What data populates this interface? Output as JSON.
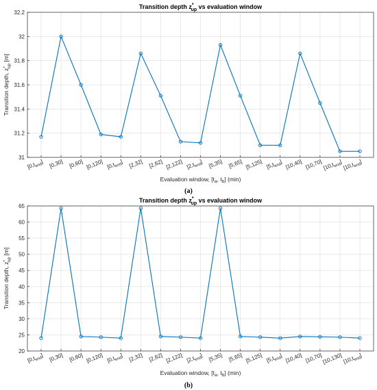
{
  "chart_data": [
    {
      "type": "line",
      "title": "Transition depth z*up vs evaluation window",
      "title_parts": {
        "pre": "Transition depth z",
        "sup": "*",
        "sub": "up",
        "post": " vs evaluation window"
      },
      "ylabel": "Transition depth, z*up [m]",
      "ylabel_parts": {
        "pre": "Transition depth, z",
        "sup": "*",
        "sub": "up",
        "post": " [m]"
      },
      "xlabel": "Evaluation window, [ta, tb] (min)",
      "xlabel_parts": {
        "pre": "Evaluation window, [t",
        "sub1": "a",
        "mid": ", t",
        "sub2": "b",
        "post": "] (min)"
      },
      "ylim": [
        31,
        32.2
      ],
      "yticks": [
        31,
        31.2,
        31.4,
        31.6,
        31.8,
        32,
        32.2
      ],
      "ytick_labels": [
        "31",
        "31.2",
        "31.4",
        "31.6",
        "31.8",
        "32",
        "32.2"
      ],
      "grid": true,
      "color": "#0072BD",
      "categories": [
        "[0,tend]",
        "[0,30]",
        "[0,60]",
        "[0,120]",
        "[0,tend]",
        "[2,32]",
        "[2,62]",
        "[2,122]",
        "[2,tend]",
        "[5,35]",
        "[5,65]",
        "[5,125]",
        "[5,tend]",
        "[10,40]",
        "[10,70]",
        "[10,tend]",
        "[10,tend]"
      ],
      "tick_labels": [
        {
          "pre": "[0,t",
          "sub": "end",
          "post": "]"
        },
        {
          "pre": "[0,30]"
        },
        {
          "pre": "[0,60]"
        },
        {
          "pre": "[0,120]"
        },
        {
          "pre": "[0,t",
          "sub": "end",
          "post": "]"
        },
        {
          "pre": "[2,32]"
        },
        {
          "pre": "[2,62]"
        },
        {
          "pre": "[2,122]"
        },
        {
          "pre": "[2,t",
          "sub": "end",
          "post": "]"
        },
        {
          "pre": "[5,35]"
        },
        {
          "pre": "[5,65]"
        },
        {
          "pre": "[5,125]"
        },
        {
          "pre": "[5,t",
          "sub": "end",
          "post": "]"
        },
        {
          "pre": "[10,40]"
        },
        {
          "pre": "[10,70]"
        },
        {
          "pre": "[10,t",
          "sub": "end",
          "post": "]"
        },
        {
          "pre": "[10,t",
          "sub": "end",
          "post": "]"
        }
      ],
      "values": [
        31.17,
        32.0,
        31.6,
        31.19,
        31.17,
        31.86,
        31.51,
        31.13,
        31.12,
        31.93,
        31.51,
        31.1,
        31.1,
        31.86,
        31.45,
        31.05,
        31.05
      ],
      "panel_label": "(a)"
    },
    {
      "type": "line",
      "title": "Transition depth z*up vs evaluation window",
      "title_parts": {
        "pre": "Transition depth z",
        "sup": "*",
        "sub": "up",
        "post": " vs evaluation window"
      },
      "ylabel": "Transition depth, z*up [m]",
      "ylabel_parts": {
        "pre": "Transition depth, z",
        "sup": "*",
        "sub": "up",
        "post": " [m]"
      },
      "xlabel": "Evaluation window, [ta, tb] (min)",
      "xlabel_parts": {
        "pre": "Evaluation window, [t",
        "sub1": "a",
        "mid": ", t",
        "sub2": "b",
        "post": "] (min)"
      },
      "ylim": [
        20,
        65
      ],
      "yticks": [
        20,
        25,
        30,
        35,
        40,
        45,
        50,
        55,
        60,
        65
      ],
      "ytick_labels": [
        "20",
        "25",
        "30",
        "35",
        "40",
        "45",
        "50",
        "55",
        "60",
        "65"
      ],
      "grid": true,
      "color": "#0072BD",
      "categories": [
        "[0,tend]",
        "[0,30]",
        "[0,60]",
        "[0,120]",
        "[0,tend]",
        "[2,32]",
        "[2,62]",
        "[2,122]",
        "[2,tend]",
        "[5,35]",
        "[5,65]",
        "[5,125]",
        "[5,tend]",
        "[10,40]",
        "[10,70]",
        "[10,130]",
        "[10,tend]"
      ],
      "tick_labels": [
        {
          "pre": "[0,t",
          "sub": "end",
          "post": "]"
        },
        {
          "pre": "[0,30]"
        },
        {
          "pre": "[0,60]"
        },
        {
          "pre": "[0,120]"
        },
        {
          "pre": "[0,t",
          "sub": "end",
          "post": "]"
        },
        {
          "pre": "[2,32]"
        },
        {
          "pre": "[2,62]"
        },
        {
          "pre": "[2,122]"
        },
        {
          "pre": "[2,t",
          "sub": "end",
          "post": "]"
        },
        {
          "pre": "[5,35]"
        },
        {
          "pre": "[5,65]"
        },
        {
          "pre": "[5,125]"
        },
        {
          "pre": "[5,t",
          "sub": "end",
          "post": "]"
        },
        {
          "pre": "[10,40]"
        },
        {
          "pre": "[10,70]"
        },
        {
          "pre": "[10,130]"
        },
        {
          "pre": "[10,t",
          "sub": "end",
          "post": "]"
        }
      ],
      "values": [
        24.0,
        64.3,
        24.5,
        24.3,
        24.0,
        64.3,
        24.5,
        24.3,
        24.0,
        64.3,
        24.5,
        24.3,
        24.0,
        24.5,
        24.4,
        24.3,
        24.0
      ],
      "panel_label": "(b)"
    }
  ]
}
